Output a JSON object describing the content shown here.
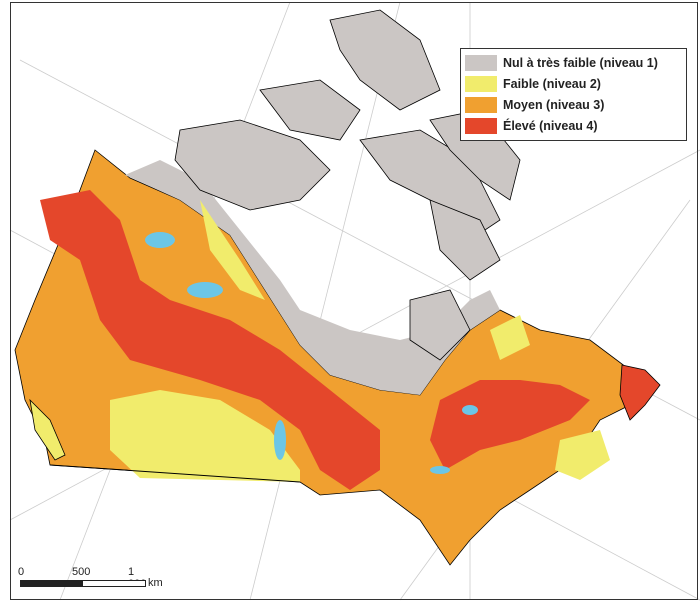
{
  "legend": {
    "items": [
      {
        "label": "Nul à très faible (niveau 1)",
        "color": "#cbc6c4"
      },
      {
        "label": "Faible (niveau 2)",
        "color": "#f1ec6c"
      },
      {
        "label": "Moyen (niveau 3)",
        "color": "#f0a030"
      },
      {
        "label": "Élevé (niveau 4)",
        "color": "#e4472b"
      }
    ]
  },
  "scale": {
    "ticks": [
      "0",
      "500",
      "1 000"
    ],
    "unit": "km"
  },
  "colors": {
    "water": "#6cc6e6",
    "border": "#000000"
  }
}
